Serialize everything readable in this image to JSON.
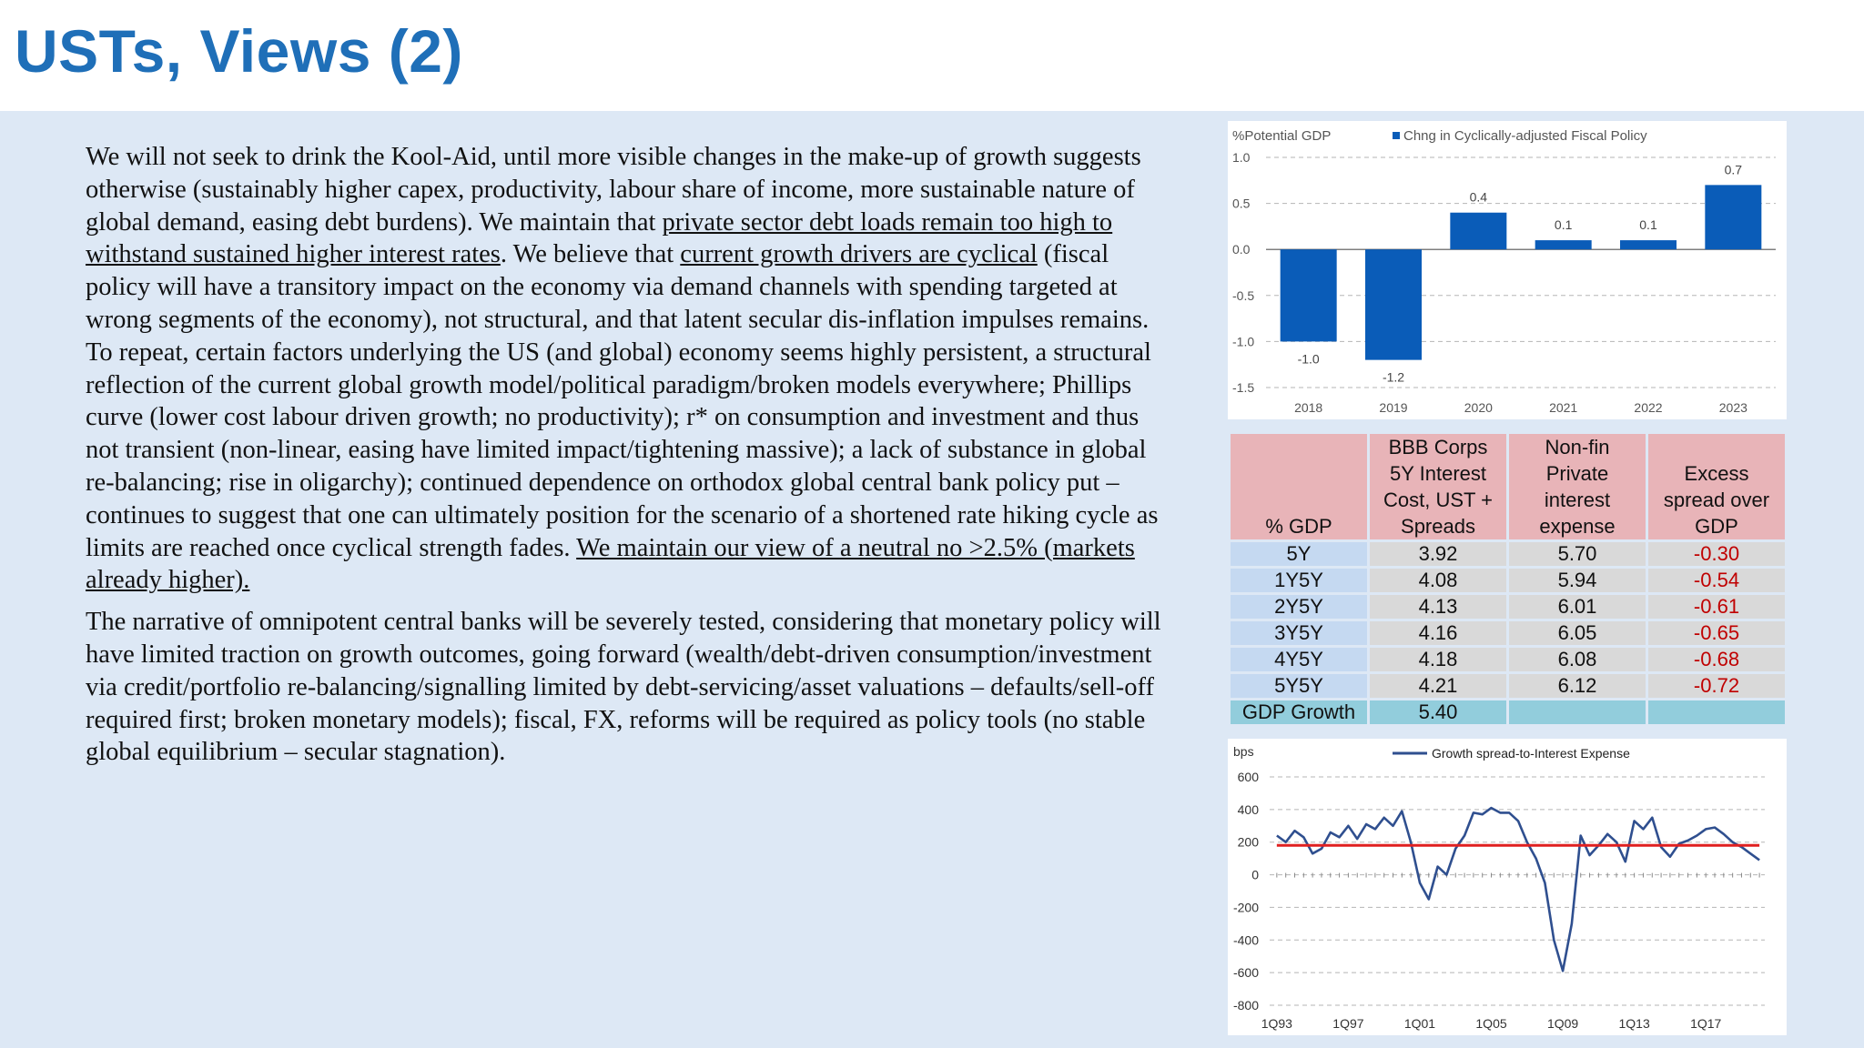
{
  "slide": {
    "title": "USTs, Views (2)",
    "para1_a": "We will not seek to drink the Kool-Aid, until more visible changes in the make-up of growth suggests otherwise (sustainably higher capex, productivity, labour share of income, more sustainable nature of global demand, easing debt burdens). We maintain that ",
    "para1_u1": "private sector debt loads remain too high to withstand sustained higher interest rates",
    "para1_b": ". We believe that ",
    "para1_u2": "current growth drivers are cyclical",
    "para1_c": " (fiscal policy will have a transitory impact on the economy via demand channels with spending targeted at wrong segments of the economy), not structural, and that latent secular dis-inflation impulses remains. To repeat, certain factors underlying the US (and global) economy seems highly persistent, a structural reflection of the current global growth model/political paradigm/broken models everywhere; Phillips curve (lower cost labour driven growth; no productivity); r* on consumption and investment and thus not transient (non-linear, easing have limited impact/tightening massive); a lack of substance in global re-balancing; rise in oligarchy); continued dependence on orthodox global central bank policy put – continues to suggest that one can ultimately position for the scenario of a shortened rate hiking cycle as limits are reached once cyclical strength fades. ",
    "para1_u3": "We maintain our view of a neutral no >2.5% (markets already higher).",
    "para2": "The narrative of  omnipotent central banks will be severely tested, considering that monetary policy will have limited traction on growth outcomes, going forward (wealth/debt-driven consumption/investment via credit/portfolio re-balancing/signalling limited by debt-servicing/asset valuations – defaults/sell-off required first; broken monetary models); fiscal, FX, reforms will be required as policy tools (no stable global equilibrium – secular stagnation)."
  },
  "colors": {
    "title": "#1f6fb8",
    "bar": "#0a5cb8",
    "line": "#2f4f8f",
    "ref_line": "#e02020",
    "negative_text": "#c00000"
  },
  "chart_data": [
    {
      "type": "bar",
      "ylabel": "%Potential GDP",
      "series": [
        {
          "name": "Chng in Cyclically-adjusted Fiscal Policy",
          "values": [
            -1.0,
            -1.2,
            0.4,
            0.1,
            0.1,
            0.7
          ]
        }
      ],
      "categories": [
        "2018",
        "2019",
        "2020",
        "2021",
        "2022",
        "2023"
      ],
      "data_labels": [
        "-1.0",
        "-1.2",
        "0.4",
        "0.1",
        "0.1",
        "0.7"
      ],
      "ylim": [
        -1.5,
        1.0
      ],
      "yticks": [
        "1.0",
        "0.5",
        "0.0",
        "-0.5",
        "-1.0",
        "-1.5"
      ],
      "grid": true,
      "legend_position": "top"
    },
    {
      "type": "table",
      "columns": [
        "% GDP",
        "BBB Corps 5Y Interest Cost, UST + Spreads",
        "Non-fin Private interest expense",
        "Excess spread over GDP"
      ],
      "header_lines": [
        [
          "% GDP"
        ],
        [
          "BBB Corps",
          "5Y Interest",
          "Cost, UST +",
          "Spreads"
        ],
        [
          "Non-fin",
          "Private",
          "interest",
          "expense"
        ],
        [
          "Excess",
          "spread over",
          "GDP"
        ]
      ],
      "rows": [
        [
          "5Y",
          "3.92",
          "5.70",
          "-0.30"
        ],
        [
          "1Y5Y",
          "4.08",
          "5.94",
          "-0.54"
        ],
        [
          "2Y5Y",
          "4.13",
          "6.01",
          "-0.61"
        ],
        [
          "3Y5Y",
          "4.16",
          "6.05",
          "-0.65"
        ],
        [
          "4Y5Y",
          "4.18",
          "6.08",
          "-0.68"
        ],
        [
          "5Y5Y",
          "4.21",
          "6.12",
          "-0.72"
        ]
      ],
      "footer_row": [
        "GDP Growth",
        "5.40",
        "",
        ""
      ]
    },
    {
      "type": "line",
      "ylabel": "bps",
      "series": [
        {
          "name": "Growth spread-to-Interest Expense",
          "x": [
            1993.0,
            1993.5,
            1994.0,
            1994.5,
            1995.0,
            1995.5,
            1996.0,
            1996.5,
            1997.0,
            1997.5,
            1998.0,
            1998.5,
            1999.0,
            1999.5,
            2000.0,
            2000.5,
            2001.0,
            2001.5,
            2002.0,
            2002.5,
            2003.0,
            2003.5,
            2004.0,
            2004.5,
            2005.0,
            2005.5,
            2006.0,
            2006.5,
            2007.0,
            2007.5,
            2008.0,
            2008.5,
            2009.0,
            2009.5,
            2010.0,
            2010.5,
            2011.0,
            2011.5,
            2012.0,
            2012.5,
            2013.0,
            2013.5,
            2014.0,
            2014.5,
            2015.0,
            2015.5,
            2016.0,
            2016.5,
            2017.0,
            2017.5,
            2018.0,
            2018.5,
            2019.0,
            2019.5,
            2020.0
          ],
          "values": [
            240,
            200,
            270,
            230,
            130,
            160,
            260,
            230,
            300,
            220,
            310,
            280,
            350,
            300,
            390,
            200,
            -50,
            -150,
            50,
            0,
            160,
            240,
            380,
            370,
            410,
            380,
            380,
            330,
            200,
            100,
            -50,
            -400,
            -590,
            -300,
            240,
            120,
            180,
            250,
            200,
            80,
            330,
            280,
            350,
            170,
            110,
            190,
            210,
            240,
            280,
            290,
            250,
            200,
            170,
            130,
            90
          ]
        },
        {
          "name": "",
          "x": [
            1993.0,
            2020.0
          ],
          "values": [
            180,
            180
          ]
        }
      ],
      "xticks": [
        "1Q93",
        "1Q97",
        "1Q01",
        "1Q05",
        "1Q09",
        "1Q13",
        "1Q17"
      ],
      "xtick_values": [
        1993,
        1997,
        2001,
        2005,
        2009,
        2013,
        2017
      ],
      "yticks": [
        "600",
        "400",
        "200",
        "0",
        "-200",
        "-400",
        "-600",
        "-800"
      ],
      "ylim": [
        -800,
        600
      ],
      "grid": true,
      "legend_position": "top"
    }
  ]
}
